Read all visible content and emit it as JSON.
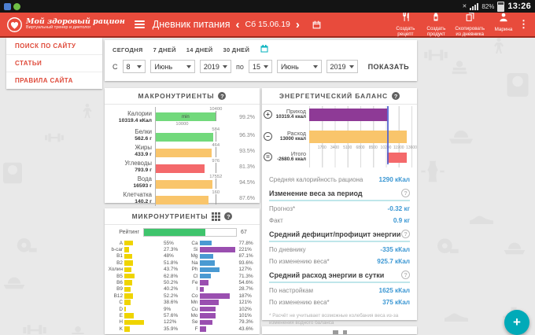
{
  "colors": {
    "green": "#72d97c",
    "orange": "#f9c56b",
    "red": "#f4696b",
    "yellow": "#efd400",
    "blue": "#4a9ad2",
    "purple": "#9a4fb0",
    "purple_dark": "#8e3a96",
    "rating_green": "#3fc46c",
    "accent_red": "#e84b3c",
    "teal": "#00b1bd",
    "value_blue": "#3b97d3"
  },
  "status_bar": {
    "time": "13:26",
    "battery": "82%",
    "icons": [
      "notification-icons",
      "mute-icon",
      "signal-icon",
      "battery-icon"
    ]
  },
  "header": {
    "brand": {
      "title": "Мой здоровый рацион",
      "subtitle": "Виртуальный тренер и диетолог"
    },
    "page_title": "Дневник питания",
    "prev": "‹",
    "next": "›",
    "date": "Сб 15.06.19",
    "actions": [
      {
        "id": "create-recipe",
        "line1": "Создать",
        "line2": "рецепт",
        "icon": "utensils-icon"
      },
      {
        "id": "create-product",
        "line1": "Создать",
        "line2": "продукт",
        "icon": "jar-icon"
      },
      {
        "id": "copy-from-diary",
        "line1": "Скопировать",
        "line2": "из дневника",
        "icon": "copy-icon"
      }
    ],
    "user": "Марина",
    "menu_dots": "⋮"
  },
  "sidebar": {
    "items": [
      "ПОИСК ПО САЙТУ",
      "СТАТЬИ",
      "ПРАВИЛА САЙТА"
    ]
  },
  "date_filter": {
    "quick": [
      "СЕГОДНЯ",
      "7 ДНЕЙ",
      "14 ДНЕЙ",
      "30 ДНЕЙ"
    ],
    "from_label": "С",
    "to_label": "по",
    "show_label": "ПОКАЗАТЬ",
    "from": {
      "day": "8",
      "month": "Июнь",
      "year": "2019"
    },
    "to": {
      "day": "15",
      "month": "Июнь",
      "year": "2019"
    }
  },
  "chart_data": [
    {
      "type": "bar",
      "title": "МАКРОНУТРИЕНТЫ",
      "rows": [
        {
          "name": "Калории",
          "amount": "10319.4 кКал",
          "target": "10400",
          "percent": "99.2%",
          "color": "green",
          "min_label": "min",
          "min_below": "10000"
        },
        {
          "name": "Белки",
          "amount": "562.6 г",
          "target": "584",
          "percent": "96.3%",
          "color": "green"
        },
        {
          "name": "Жиры",
          "amount": "433.9 г",
          "target": "464",
          "percent": "93.5%",
          "color": "orange"
        },
        {
          "name": "Углеводы",
          "amount": "793.9 г",
          "target": "976",
          "percent": "81.3%",
          "color": "red"
        },
        {
          "name": "Вода",
          "amount": "16593 г",
          "target": "17552",
          "percent": "94.5%",
          "color": "orange"
        },
        {
          "name": "Клетчатка",
          "amount": "140.2 г",
          "target": "160",
          "percent": "87.6%",
          "color": "orange"
        }
      ]
    },
    {
      "type": "bar",
      "title": "ЭНЕРГЕТИЧЕСКИЙ БАЛАНС",
      "axis_max": 13600,
      "axis_ticks": [
        "1700",
        "3400",
        "5100",
        "6800",
        "8500",
        "10200",
        "11900",
        "13600"
      ],
      "marker_value": 10319.4,
      "rows": [
        {
          "sign": "+",
          "name": "Приход",
          "label": "10319.4 ккал",
          "value": 10319.4,
          "color": "purple_dark",
          "segments": true
        },
        {
          "sign": "−",
          "name": "Расход",
          "label": "13000 ккал",
          "value": 13000,
          "color": "orange"
        },
        {
          "sign": "=",
          "name": "Итого",
          "label": "-2680.6 ккал",
          "value": -2680.6,
          "color": "red",
          "bar_from": 10319.4,
          "bar_to": 13000
        }
      ],
      "stats": [
        {
          "type": "row",
          "label": "Средняя калорийность рациона",
          "value": "1290 кКал"
        },
        {
          "type": "header",
          "label": "Изменение веса за период"
        },
        {
          "type": "row",
          "label": "Прогноз*",
          "value": "-0.32 кг"
        },
        {
          "type": "row",
          "label": "Факт",
          "value": "0.9 кг"
        },
        {
          "type": "header",
          "label": "Средний дефицит/профицит энергии"
        },
        {
          "type": "row",
          "label": "По дневнику",
          "value": "-335 кКал"
        },
        {
          "type": "row",
          "label": "По изменению веса*",
          "value": "925.7 кКал"
        },
        {
          "type": "header",
          "label": "Средний расход энергии в сутки"
        },
        {
          "type": "row",
          "label": "По настройкам",
          "value": "1625 кКал"
        },
        {
          "type": "row",
          "label": "По изменению веса*",
          "value": "375 кКал"
        },
        {
          "type": "footnote",
          "text": "* Расчёт не учитывает возможные колебания веса из-за изменения водного баланса"
        }
      ]
    },
    {
      "type": "bar",
      "title": "МИКРОНУТРИЕНТЫ",
      "rating": {
        "label": "Рейтинг",
        "value": "67",
        "max": 100
      },
      "vitamins": [
        {
          "el": "A",
          "pct": "55%"
        },
        {
          "el": "b-car",
          "pct": "27.3%"
        },
        {
          "el": "B1",
          "pct": "48%"
        },
        {
          "el": "B2",
          "pct": "51.8%"
        },
        {
          "el": "Холин",
          "pct": "43.7%"
        },
        {
          "el": "B5",
          "pct": "62.8%"
        },
        {
          "el": "B6",
          "pct": "50.2%"
        },
        {
          "el": "B9",
          "pct": "40.2%"
        },
        {
          "el": "B12",
          "pct": "52.2%"
        },
        {
          "el": "C",
          "pct": "38.6%"
        },
        {
          "el": "D",
          "pct": "9%"
        },
        {
          "el": "E",
          "pct": "57.6%"
        },
        {
          "el": "H",
          "pct": "122%"
        },
        {
          "el": "K",
          "pct": "35.9%"
        }
      ],
      "minerals": [
        {
          "el": "Ca",
          "pct": "77.8%",
          "color": "blue"
        },
        {
          "el": "Si",
          "pct": "221%",
          "color": "purple"
        },
        {
          "el": "Mg",
          "pct": "87.1%",
          "color": "blue"
        },
        {
          "el": "Na",
          "pct": "93.6%",
          "color": "blue"
        },
        {
          "el": "Ph",
          "pct": "127%",
          "color": "blue"
        },
        {
          "el": "Cl",
          "pct": "71.3%",
          "color": "blue"
        },
        {
          "el": "Fe",
          "pct": "54.6%",
          "color": "purple"
        },
        {
          "el": "I",
          "pct": "28.7%",
          "color": "purple"
        },
        {
          "el": "Co",
          "pct": "187%",
          "color": "purple"
        },
        {
          "el": "Mn",
          "pct": "121%",
          "color": "purple"
        },
        {
          "el": "Cu",
          "pct": "102%",
          "color": "purple"
        },
        {
          "el": "Mo",
          "pct": "101%",
          "color": "purple"
        },
        {
          "el": "Se",
          "pct": "79.3%",
          "color": "purple"
        },
        {
          "el": "F",
          "pct": "43.6%",
          "color": "purple"
        }
      ]
    }
  ],
  "fab_label": "+",
  "background_icons": [
    "dumbbell-icon",
    "shoe-icon",
    "scale-icon",
    "plate-icon",
    "person-icon",
    "tape-icon",
    "waist-icon",
    "books-icon"
  ]
}
